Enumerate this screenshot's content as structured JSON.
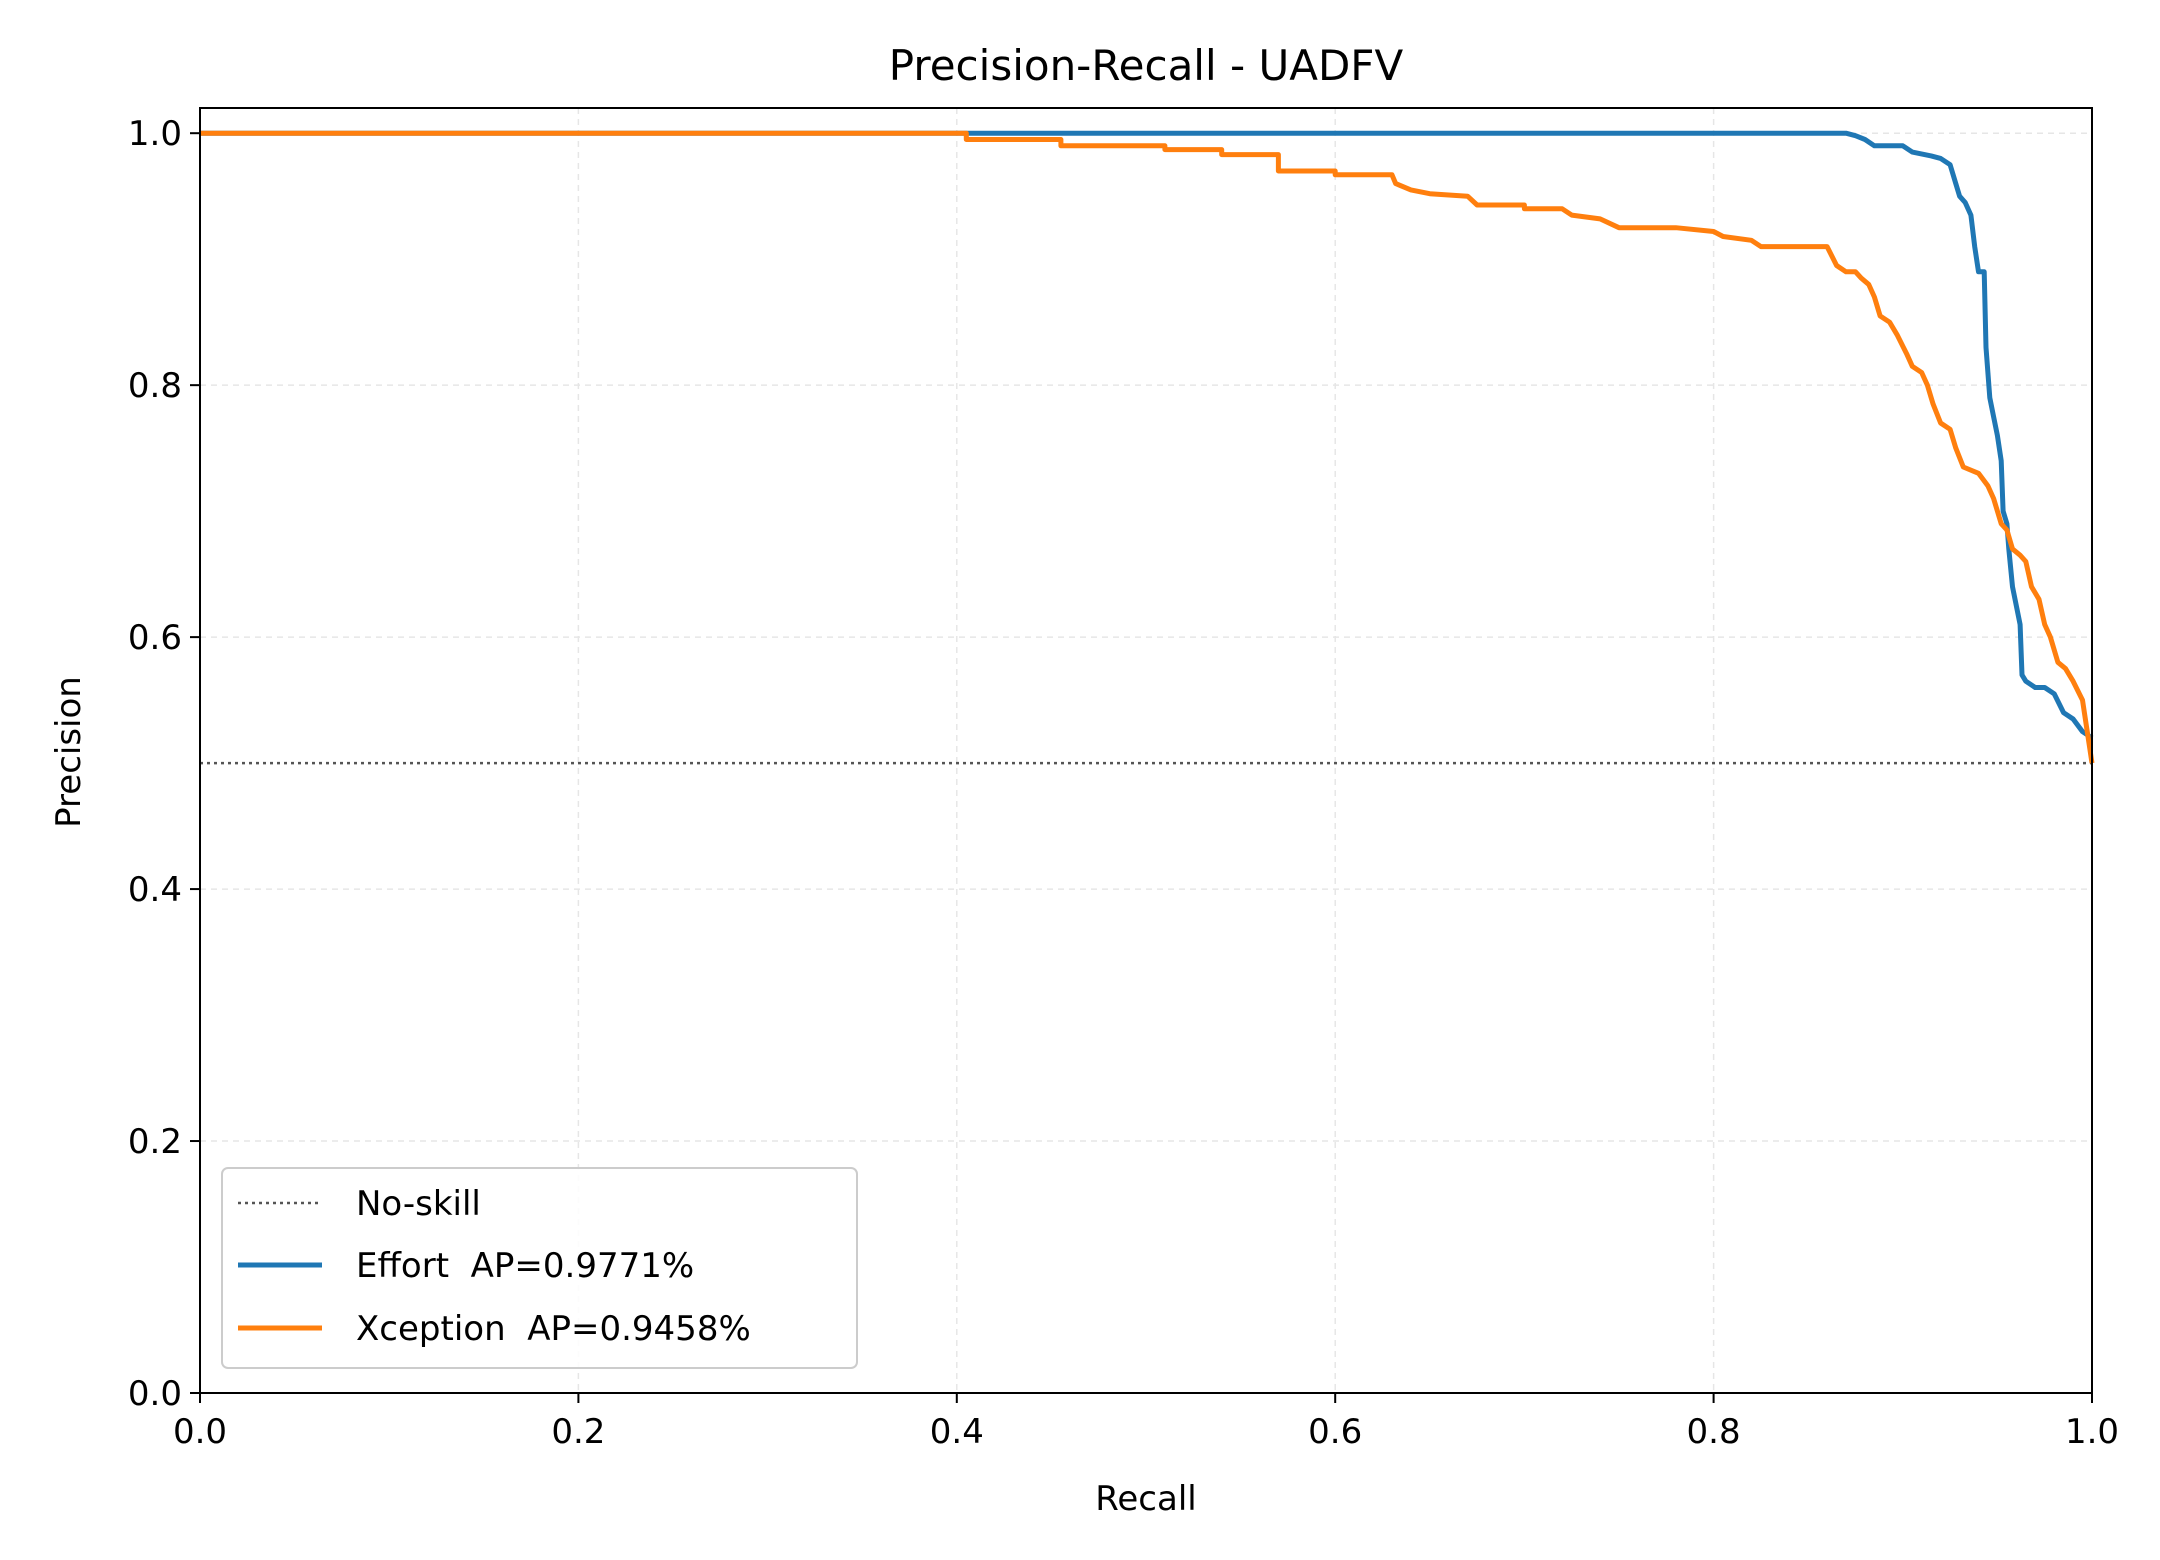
{
  "chart_data": {
    "type": "line",
    "title": "Precision-Recall - UADFV",
    "xlabel": "Recall",
    "ylabel": "Precision",
    "xlim": [
      0.0,
      1.0
    ],
    "ylim": [
      0.0,
      1.02
    ],
    "xticks": [
      "0.0",
      "0.2",
      "0.4",
      "0.6",
      "0.8",
      "1.0"
    ],
    "yticks": [
      "0.0",
      "0.2",
      "0.4",
      "0.6",
      "0.8",
      "1.0"
    ],
    "grid": true,
    "legend_position": "lower-left",
    "baseline": {
      "name": "No-skill",
      "y": 0.5,
      "color": "#555555",
      "style": "dotted"
    },
    "series": [
      {
        "name": "Effort  AP=0.9771%",
        "color": "#1f77b4",
        "points": [
          [
            0.0,
            1.0
          ],
          [
            0.87,
            1.0
          ],
          [
            0.875,
            0.998
          ],
          [
            0.88,
            0.995
          ],
          [
            0.885,
            0.99
          ],
          [
            0.9,
            0.99
          ],
          [
            0.905,
            0.985
          ],
          [
            0.915,
            0.982
          ],
          [
            0.92,
            0.98
          ],
          [
            0.925,
            0.975
          ],
          [
            0.928,
            0.96
          ],
          [
            0.93,
            0.95
          ],
          [
            0.933,
            0.945
          ],
          [
            0.936,
            0.935
          ],
          [
            0.938,
            0.91
          ],
          [
            0.94,
            0.89
          ],
          [
            0.943,
            0.89
          ],
          [
            0.944,
            0.83
          ],
          [
            0.946,
            0.79
          ],
          [
            0.948,
            0.775
          ],
          [
            0.95,
            0.76
          ],
          [
            0.952,
            0.74
          ],
          [
            0.953,
            0.7
          ],
          [
            0.955,
            0.69
          ],
          [
            0.956,
            0.67
          ],
          [
            0.958,
            0.64
          ],
          [
            0.96,
            0.625
          ],
          [
            0.962,
            0.61
          ],
          [
            0.963,
            0.57
          ],
          [
            0.965,
            0.565
          ],
          [
            0.97,
            0.56
          ],
          [
            0.975,
            0.56
          ],
          [
            0.98,
            0.555
          ],
          [
            0.985,
            0.54
          ],
          [
            0.99,
            0.535
          ],
          [
            0.995,
            0.525
          ],
          [
            1.0,
            0.52
          ]
        ]
      },
      {
        "name": "Xception  AP=0.9458%",
        "color": "#ff7f0e",
        "points": [
          [
            0.0,
            1.0
          ],
          [
            0.405,
            1.0
          ],
          [
            0.405,
            0.995
          ],
          [
            0.455,
            0.995
          ],
          [
            0.455,
            0.99
          ],
          [
            0.51,
            0.99
          ],
          [
            0.51,
            0.987
          ],
          [
            0.54,
            0.987
          ],
          [
            0.54,
            0.983
          ],
          [
            0.57,
            0.983
          ],
          [
            0.57,
            0.97
          ],
          [
            0.6,
            0.97
          ],
          [
            0.6,
            0.967
          ],
          [
            0.63,
            0.967
          ],
          [
            0.632,
            0.96
          ],
          [
            0.64,
            0.955
          ],
          [
            0.65,
            0.952
          ],
          [
            0.67,
            0.95
          ],
          [
            0.675,
            0.943
          ],
          [
            0.7,
            0.943
          ],
          [
            0.7,
            0.94
          ],
          [
            0.72,
            0.94
          ],
          [
            0.725,
            0.935
          ],
          [
            0.74,
            0.932
          ],
          [
            0.75,
            0.925
          ],
          [
            0.78,
            0.925
          ],
          [
            0.8,
            0.922
          ],
          [
            0.805,
            0.918
          ],
          [
            0.82,
            0.915
          ],
          [
            0.825,
            0.91
          ],
          [
            0.86,
            0.91
          ],
          [
            0.865,
            0.895
          ],
          [
            0.87,
            0.89
          ],
          [
            0.875,
            0.89
          ],
          [
            0.878,
            0.885
          ],
          [
            0.882,
            0.88
          ],
          [
            0.885,
            0.87
          ],
          [
            0.888,
            0.855
          ],
          [
            0.893,
            0.85
          ],
          [
            0.897,
            0.84
          ],
          [
            0.902,
            0.825
          ],
          [
            0.905,
            0.815
          ],
          [
            0.91,
            0.81
          ],
          [
            0.913,
            0.8
          ],
          [
            0.916,
            0.785
          ],
          [
            0.92,
            0.77
          ],
          [
            0.925,
            0.765
          ],
          [
            0.928,
            0.75
          ],
          [
            0.932,
            0.735
          ],
          [
            0.94,
            0.73
          ],
          [
            0.945,
            0.72
          ],
          [
            0.948,
            0.71
          ],
          [
            0.952,
            0.69
          ],
          [
            0.955,
            0.685
          ],
          [
            0.958,
            0.67
          ],
          [
            0.962,
            0.665
          ],
          [
            0.965,
            0.66
          ],
          [
            0.968,
            0.64
          ],
          [
            0.972,
            0.63
          ],
          [
            0.975,
            0.61
          ],
          [
            0.978,
            0.6
          ],
          [
            0.982,
            0.58
          ],
          [
            0.986,
            0.575
          ],
          [
            0.99,
            0.565
          ],
          [
            0.995,
            0.55
          ],
          [
            1.0,
            0.5
          ]
        ]
      }
    ]
  }
}
